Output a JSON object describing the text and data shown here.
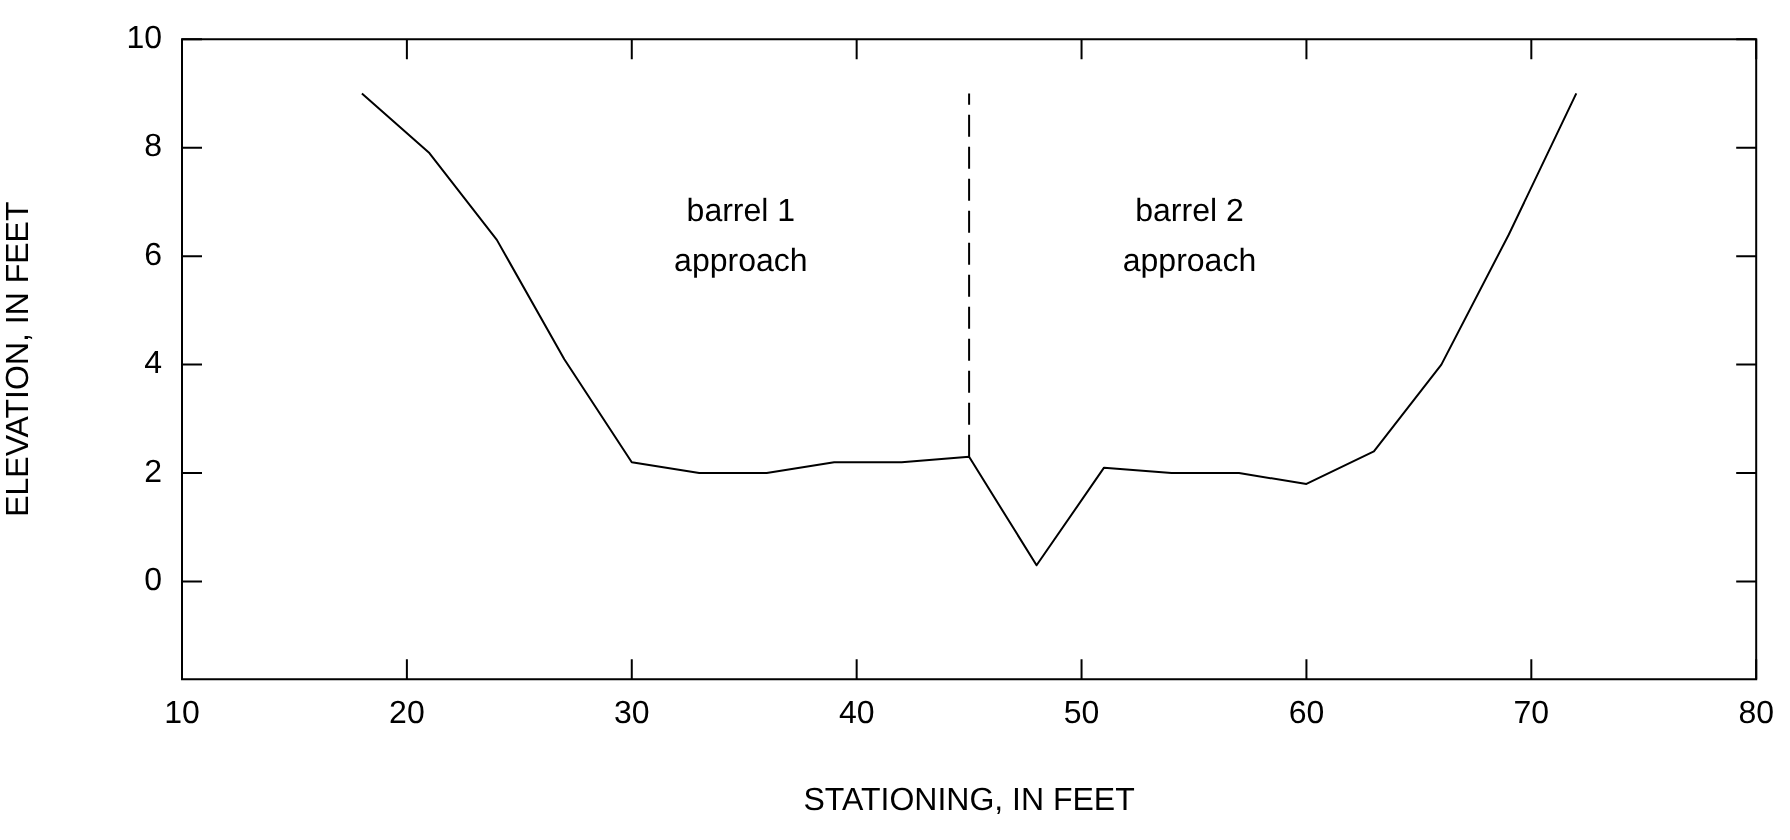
{
  "chart_data": {
    "type": "line",
    "xlabel": "STATIONING, IN FEET",
    "ylabel": "ELEVATION, IN FEET",
    "xlim": [
      10,
      80
    ],
    "xticks": [
      10,
      20,
      30,
      40,
      50,
      60,
      70,
      80
    ],
    "ylim": [
      -1.8,
      10
    ],
    "yticks": [
      0,
      2,
      4,
      6,
      8,
      10
    ],
    "x": [
      18,
      21,
      24,
      27,
      30,
      33,
      36,
      39,
      42,
      45,
      48,
      51,
      54,
      57,
      60,
      63,
      66,
      69,
      72
    ],
    "series": [
      {
        "color": "#000000",
        "values": [
          9,
          7.9,
          6.3,
          4.1,
          2.2,
          2.0,
          2.0,
          2.2,
          2.2,
          2.3,
          0.3,
          2.1,
          2.0,
          2.0,
          1.8,
          2.4,
          4.0,
          6.4,
          9.0
        ]
      },
      {
        "color": "#000000",
        "x": [
          45,
          45
        ],
        "values": [
          2.3,
          9
        ],
        "line_style": "dashed"
      }
    ],
    "annotations": [
      "barrel 1\napproach",
      "barrel 2\napproach"
    ],
    "legend": false,
    "marker": "none"
  }
}
